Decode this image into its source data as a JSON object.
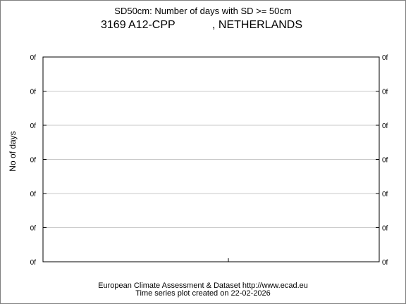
{
  "header": {
    "title": "SD50cm: Number of days with SD >= 50cm",
    "station_id": "3169",
    "station_name": "A12-CPP",
    "country": ", NETHERLANDS"
  },
  "footer": {
    "line1": "European Climate Assessment & Dataset  http://www.ecad.eu",
    "line2": "Time series plot created on 22-02-2026"
  },
  "chart_data": {
    "type": "line",
    "title": "SD50cm: Number of days with SD >= 50cm",
    "xlabel": "",
    "ylabel": "No of days",
    "y_tick_labels": [
      "0f",
      "0f",
      "0f",
      "0f",
      "0f",
      "0f",
      "0f"
    ],
    "x": [],
    "series": [],
    "grid": true,
    "legend": "none",
    "colors": {
      "axis": "#000000",
      "grid": "#c8c8c8"
    }
  }
}
